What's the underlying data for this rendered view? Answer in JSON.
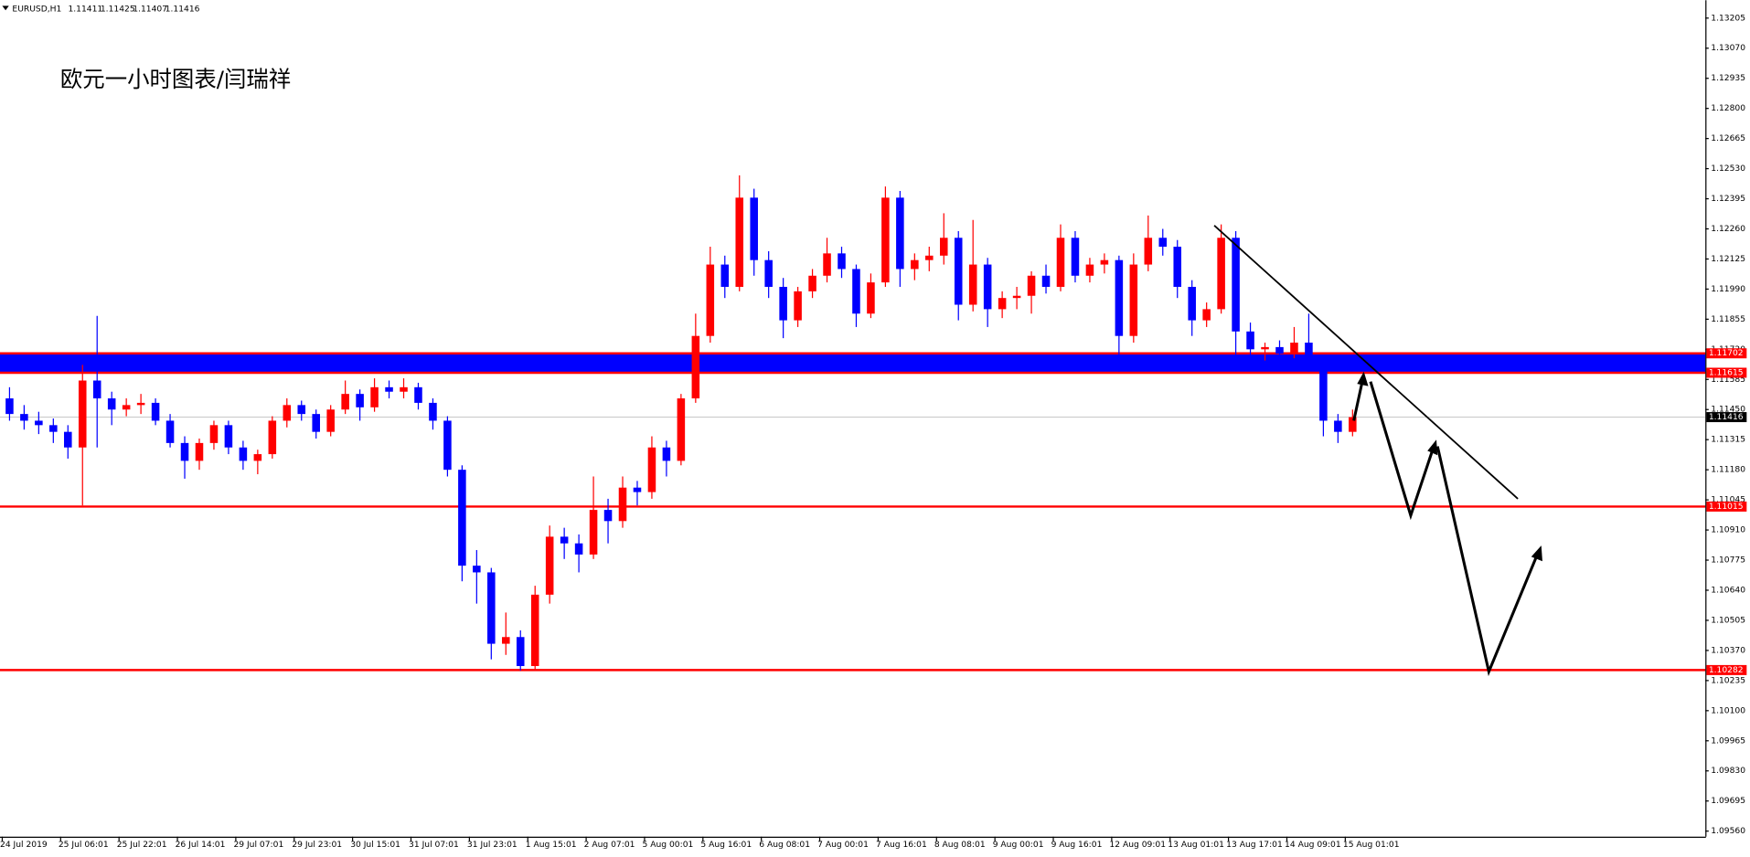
{
  "chart_data": {
    "type": "candlestick",
    "title": "欧元一小时图表/闫瑞祥",
    "symbol": "EURUSD,H1",
    "ohlc": [
      1.11411,
      1.11425,
      1.11407,
      1.11416
    ],
    "categories": [
      "24 Jul 2019",
      null,
      null,
      null,
      "25 Jul 06:01",
      null,
      null,
      null,
      "25 Jul 22:01",
      null,
      null,
      null,
      "26 Jul 14:01",
      null,
      null,
      null,
      "29 Jul 07:01",
      null,
      null,
      null,
      "29 Jul 23:01",
      null,
      null,
      null,
      "30 Jul 15:01",
      null,
      null,
      null,
      "31 Jul 07:01",
      null,
      null,
      null,
      "31 Jul 23:01",
      null,
      null,
      null,
      "1 Aug 15:01",
      null,
      null,
      null,
      "2 Aug 07:01",
      null,
      null,
      null,
      "5 Aug 00:01",
      null,
      null,
      null,
      "5 Aug 16:01",
      null,
      null,
      null,
      "6 Aug 08:01",
      null,
      null,
      null,
      "7 Aug 00:01",
      null,
      null,
      null,
      "7 Aug 16:01",
      null,
      null,
      null,
      "8 Aug 08:01",
      null,
      null,
      null,
      "9 Aug 00:01",
      null,
      null,
      null,
      "9 Aug 16:01",
      null,
      null,
      null,
      "12 Aug 09:01",
      null,
      null,
      null,
      "13 Aug 01:01",
      null,
      null,
      null,
      "13 Aug 17:01",
      null,
      null,
      null,
      "14 Aug 09:01",
      null,
      null,
      null,
      "15 Aug 01:01"
    ],
    "open": [
      1.115,
      1.1143,
      1.114,
      1.1138,
      1.1135,
      1.1128,
      1.1158,
      1.115,
      1.1145,
      1.1147,
      1.1148,
      1.114,
      1.113,
      1.1122,
      1.113,
      1.1138,
      1.1128,
      1.1122,
      1.1125,
      1.114,
      1.1147,
      1.1143,
      1.1135,
      1.1145,
      1.1152,
      1.1146,
      1.1155,
      1.1153,
      1.1155,
      1.1148,
      1.114,
      1.1118,
      1.1075,
      1.1072,
      1.104,
      1.1043,
      1.103,
      1.1062,
      1.1088,
      1.1085,
      1.108,
      1.11,
      1.1095,
      1.111,
      1.1108,
      1.1128,
      1.1122,
      1.115,
      1.1178,
      1.121,
      1.12,
      1.124,
      1.1212,
      1.12,
      1.1185,
      1.1198,
      1.1205,
      1.1215,
      1.1208,
      1.1188,
      1.1202,
      1.124,
      1.1208,
      1.1212,
      1.1214,
      1.1222,
      1.1192,
      1.121,
      1.119,
      1.1195,
      1.1196,
      1.1205,
      1.12,
      1.1222,
      1.1205,
      1.121,
      1.1212,
      1.1178,
      1.121,
      1.1222,
      1.1218,
      1.12,
      1.1185,
      1.119,
      1.1222,
      1.118,
      1.1172,
      1.1173,
      1.117,
      1.1175,
      1.1165,
      1.114,
      1.1135
    ],
    "high": [
      1.1155,
      1.1147,
      1.1144,
      1.1141,
      1.1138,
      1.1165,
      1.1187,
      1.1153,
      1.115,
      1.1152,
      1.115,
      1.1143,
      1.1133,
      1.1132,
      1.114,
      1.114,
      1.1131,
      1.1127,
      1.1142,
      1.115,
      1.1149,
      1.1145,
      1.1147,
      1.1158,
      1.1154,
      1.1159,
      1.1158,
      1.1159,
      1.1157,
      1.115,
      1.1142,
      1.112,
      1.1082,
      1.1074,
      1.1054,
      1.1046,
      1.1066,
      1.1093,
      1.1092,
      1.1089,
      1.1115,
      1.1105,
      1.1115,
      1.1113,
      1.1133,
      1.1131,
      1.1152,
      1.1188,
      1.1218,
      1.1214,
      1.125,
      1.1244,
      1.1216,
      1.1204,
      1.12,
      1.1208,
      1.1222,
      1.1218,
      1.121,
      1.1206,
      1.1245,
      1.1243,
      1.1215,
      1.1218,
      1.1233,
      1.1225,
      1.123,
      1.1213,
      1.1198,
      1.12,
      1.1207,
      1.121,
      1.1228,
      1.1225,
      1.1213,
      1.1215,
      1.1214,
      1.1215,
      1.1232,
      1.1226,
      1.1221,
      1.1203,
      1.1193,
      1.1228,
      1.1225,
      1.1184,
      1.1175,
      1.1176,
      1.1182,
      1.1188,
      1.1167,
      1.1143,
      1.1145
    ],
    "low": [
      1.114,
      1.1136,
      1.1134,
      1.113,
      1.1123,
      1.1102,
      1.1128,
      1.1138,
      1.1142,
      1.1143,
      1.1138,
      1.1128,
      1.1114,
      1.1118,
      1.1127,
      1.1125,
      1.1118,
      1.1116,
      1.1123,
      1.1137,
      1.114,
      1.1132,
      1.1133,
      1.1143,
      1.114,
      1.1144,
      1.115,
      1.115,
      1.1145,
      1.1136,
      1.1115,
      1.1068,
      1.1058,
      1.1033,
      1.1035,
      1.1028,
      1.1028,
      1.1058,
      1.1078,
      1.1072,
      1.1078,
      1.1085,
      1.1092,
      1.1102,
      1.1105,
      1.1115,
      1.112,
      1.1148,
      1.1175,
      1.1195,
      1.1198,
      1.1205,
      1.1195,
      1.1177,
      1.1182,
      1.1195,
      1.1202,
      1.1204,
      1.1182,
      1.1186,
      1.12,
      1.12,
      1.1203,
      1.1207,
      1.121,
      1.1185,
      1.1189,
      1.1182,
      1.1186,
      1.119,
      1.1188,
      1.1197,
      1.1198,
      1.1202,
      1.1202,
      1.1206,
      1.1162,
      1.1175,
      1.1207,
      1.1214,
      1.1195,
      1.1178,
      1.1182,
      1.1188,
      1.1168,
      1.1168,
      1.1167,
      1.1165,
      1.1168,
      1.1162,
      1.1133,
      1.113,
      1.1133
    ],
    "close": [
      1.1143,
      1.114,
      1.1138,
      1.1135,
      1.1128,
      1.1158,
      1.115,
      1.1145,
      1.1147,
      1.1148,
      1.114,
      1.113,
      1.1122,
      1.113,
      1.1138,
      1.1128,
      1.1122,
      1.1125,
      1.114,
      1.1147,
      1.1143,
      1.1135,
      1.1145,
      1.1152,
      1.1146,
      1.1155,
      1.1153,
      1.1155,
      1.1148,
      1.114,
      1.1118,
      1.1075,
      1.1072,
      1.104,
      1.1043,
      1.103,
      1.1062,
      1.1088,
      1.1085,
      1.108,
      1.11,
      1.1095,
      1.111,
      1.1108,
      1.1128,
      1.1122,
      1.115,
      1.1178,
      1.121,
      1.12,
      1.124,
      1.1212,
      1.12,
      1.1185,
      1.1198,
      1.1205,
      1.1215,
      1.1208,
      1.1188,
      1.1202,
      1.124,
      1.1208,
      1.1212,
      1.1214,
      1.1222,
      1.1192,
      1.121,
      1.119,
      1.1195,
      1.1196,
      1.1205,
      1.12,
      1.1222,
      1.1205,
      1.121,
      1.1212,
      1.1178,
      1.121,
      1.1222,
      1.1218,
      1.12,
      1.1185,
      1.119,
      1.1222,
      1.118,
      1.1172,
      1.1173,
      1.117,
      1.1175,
      1.1165,
      1.114,
      1.1135,
      1.11416
    ],
    "up_color": "#ff0000",
    "down_color": "#0000ff",
    "ylim": [
      1.09535,
      1.13285
    ],
    "yticks": [
      1.13205,
      {
        "value": 1.1307,
        "label": "1.13070"
      },
      1.12935,
      {
        "value": 1.128,
        "label": "1.12800"
      },
      1.12665,
      {
        "value": 1.1253,
        "label": "1.12530"
      },
      1.12395,
      {
        "value": 1.1226,
        "label": "1.12260"
      },
      1.12125,
      {
        "value": 1.1199,
        "label": "1.11990"
      },
      1.11855,
      {
        "value": 1.1172,
        "label": "1.11720"
      },
      1.11585,
      {
        "value": 1.1145,
        "label": "1.11450"
      },
      1.11315,
      {
        "value": 1.1118,
        "label": "1.11180"
      },
      1.11045,
      {
        "value": 1.1091,
        "label": "1.10910"
      },
      1.10775,
      {
        "value": 1.1064,
        "label": "1.10640"
      },
      1.10505,
      {
        "value": 1.1037,
        "label": "1.10370"
      },
      1.10235,
      {
        "value": 1.101,
        "label": "1.10100"
      },
      1.09965,
      {
        "value": 1.0983,
        "label": "1.09830"
      },
      1.09695,
      {
        "value": 1.0956,
        "label": "1.09560"
      }
    ],
    "zone": {
      "lim": [
        1.11615,
        1.11702
      ],
      "color": "#0000ff",
      "edge_color": "#ff0000"
    },
    "levels": [
      1.11015,
      1.10282
    ],
    "level_color": "#ff0000",
    "current": 1.11416
  }
}
